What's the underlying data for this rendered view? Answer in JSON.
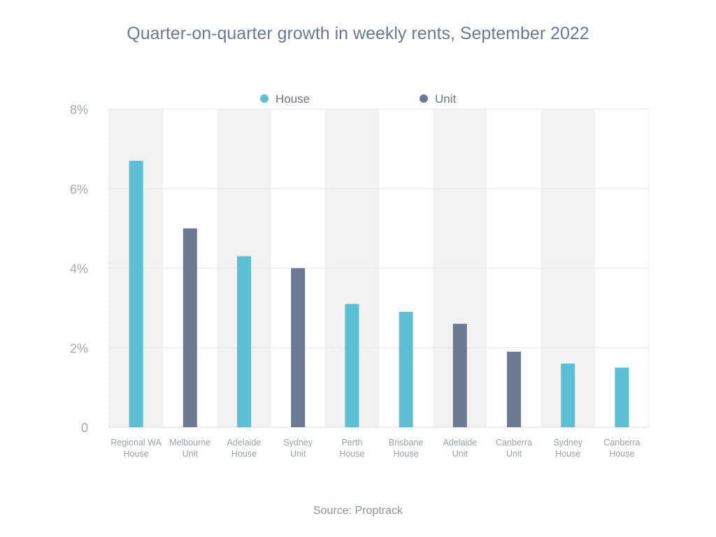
{
  "title": "Quarter-on-quarter growth in weekly rents, September 2022",
  "source": "Source: Proptrack",
  "colors": {
    "house": "#5dbfd3",
    "unit": "#6b7a90",
    "band": "#f2f2f2",
    "grid": "#e6e6e6"
  },
  "chart_data": {
    "type": "bar",
    "title": "Quarter-on-quarter growth in weekly rents, September 2022",
    "xlabel": "",
    "ylabel": "",
    "ylim": [
      0,
      8
    ],
    "yticks": [
      {
        "value": 0,
        "label": "0"
      },
      {
        "value": 2,
        "label": "2%"
      },
      {
        "value": 4,
        "label": "4%"
      },
      {
        "value": 6,
        "label": "6%"
      },
      {
        "value": 8,
        "label": "8%"
      }
    ],
    "legend": [
      {
        "name": "House",
        "color": "#5dbfd3"
      },
      {
        "name": "Unit",
        "color": "#6b7a90"
      }
    ],
    "legend_position": "top-center",
    "grid": true,
    "categories": [
      [
        "Regional WA",
        "House"
      ],
      [
        "Melbourne",
        "Unit"
      ],
      [
        "Adelaide",
        "House"
      ],
      [
        "Sydney",
        "Unit"
      ],
      [
        "Perth",
        "House"
      ],
      [
        "Brisbane",
        "House"
      ],
      [
        "Adelaide",
        "Unit"
      ],
      [
        "Canberra",
        "Unit"
      ],
      [
        "Sydney",
        "House"
      ],
      [
        "Canberra",
        "House"
      ]
    ],
    "values": [
      6.7,
      5.0,
      4.3,
      4.0,
      3.1,
      2.9,
      2.6,
      1.9,
      1.6,
      1.5
    ],
    "series_of_bar": [
      "House",
      "Unit",
      "House",
      "Unit",
      "House",
      "House",
      "Unit",
      "Unit",
      "House",
      "House"
    ]
  }
}
